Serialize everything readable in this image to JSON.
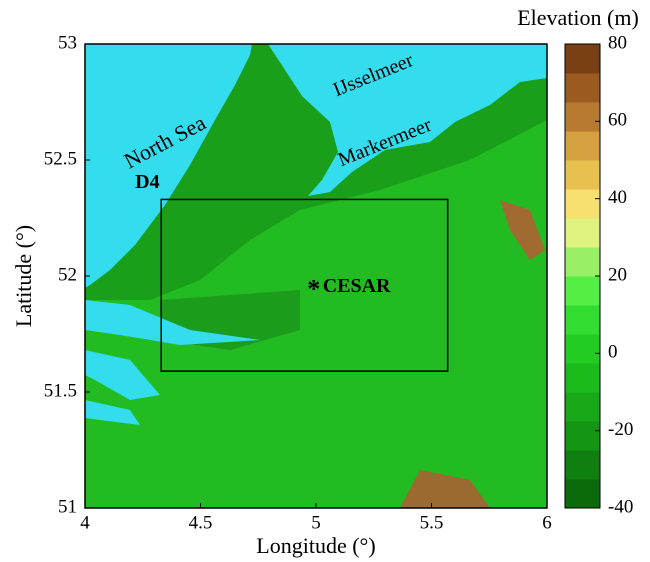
{
  "chart_data": {
    "type": "map",
    "xlabel": "Longitude (°)",
    "ylabel": "Latitude (°)",
    "xlim": [
      4,
      6
    ],
    "ylim": [
      51,
      53
    ],
    "xticks": [
      4,
      4.5,
      5,
      5.5,
      6
    ],
    "yticks": [
      51,
      51.5,
      52,
      52.5,
      53
    ],
    "colorbar_label": "Elevation (m)",
    "clim": [
      -40,
      80
    ],
    "cticks": [
      -40,
      -20,
      0,
      20,
      40,
      60,
      80
    ],
    "colormap": [
      "#0b6b0b",
      "#0f800f",
      "#149614",
      "#18a818",
      "#1cbb1c",
      "#22cc22",
      "#30dd30",
      "#55ee44",
      "#99f066",
      "#e0f280",
      "#f5e070",
      "#e8c050",
      "#d4a040",
      "#b87a30",
      "#9a5a20",
      "#7a4015"
    ],
    "annotations": [
      {
        "text": "North Sea",
        "x": 4.35,
        "y": 52.57
      },
      {
        "text": "IJsselmeer",
        "x": 5.25,
        "y": 52.86
      },
      {
        "text": "Markermeer",
        "x": 5.3,
        "y": 52.57
      },
      {
        "text": "D4",
        "x": 4.27,
        "y": 52.4
      }
    ],
    "box": {
      "name": "D4",
      "xlim": [
        4.33,
        5.57
      ],
      "ylim": [
        51.59,
        52.33
      ]
    },
    "site": {
      "name": "CESAR",
      "x": 4.99,
      "y": 51.95
    }
  }
}
